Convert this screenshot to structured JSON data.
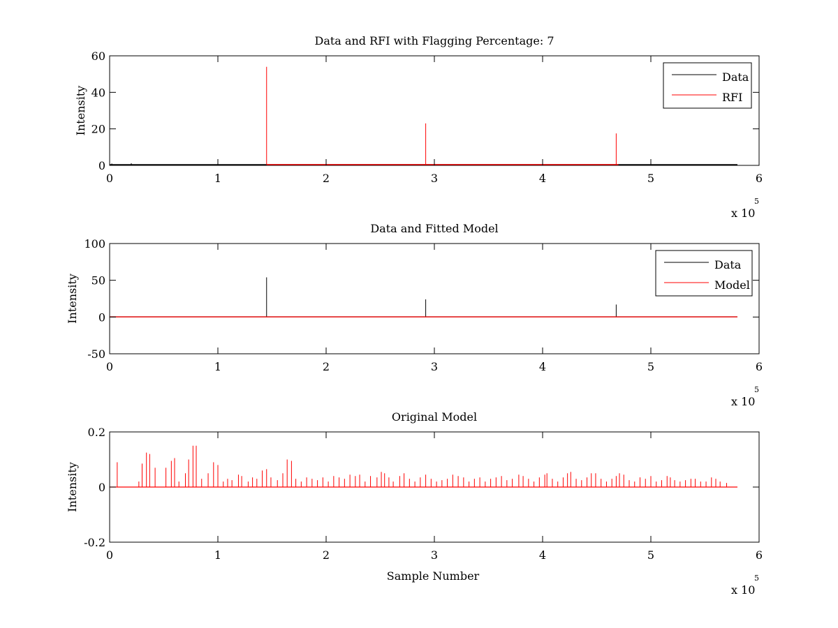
{
  "chart_data": [
    {
      "type": "line",
      "title": "Data and RFI with Flagging Percentage: 7",
      "xlabel": "",
      "ylabel": "Intensity",
      "xlim": [
        0,
        6
      ],
      "ylim": [
        0,
        60
      ],
      "x_multiplier_label": "x 10",
      "x_multiplier_exponent": "5",
      "x_ticks": [
        "0",
        "1",
        "2",
        "3",
        "4",
        "5",
        "6"
      ],
      "y_ticks": [
        "0",
        "20",
        "40",
        "60"
      ],
      "grid": false,
      "legend_position": "top-right",
      "series": [
        {
          "name": "Data",
          "color": "#000000",
          "baseline": 0.3,
          "x_range": [
            0,
            5.8
          ],
          "spikes": [
            [
              0.02,
              1.0
            ],
            [
              0.2,
              1.2
            ]
          ]
        },
        {
          "name": "RFI",
          "color": "#ff0000",
          "baseline": 0.4,
          "x_range": [
            1.45,
            4.7
          ],
          "spikes": [
            [
              1.45,
              54
            ],
            [
              2.92,
              23
            ],
            [
              4.68,
              17.5
            ]
          ]
        }
      ]
    },
    {
      "type": "line",
      "title": "Data and Fitted Model",
      "xlabel": "",
      "ylabel": "Intensity",
      "xlim": [
        0,
        6
      ],
      "ylim": [
        -50,
        100
      ],
      "x_multiplier_label": "x 10",
      "x_multiplier_exponent": "5",
      "x_ticks": [
        "0",
        "1",
        "2",
        "3",
        "4",
        "5",
        "6"
      ],
      "y_ticks": [
        "-50",
        "0",
        "50",
        "100"
      ],
      "grid": false,
      "legend_position": "top-right",
      "series": [
        {
          "name": "Data",
          "color": "#000000",
          "baseline": 0.3,
          "x_range": [
            0,
            5.8
          ],
          "spikes": [
            [
              1.45,
              54
            ],
            [
              2.92,
              24
            ],
            [
              4.68,
              17
            ]
          ]
        },
        {
          "name": "Model",
          "color": "#ff0000",
          "baseline": 0.2,
          "x_range": [
            0,
            5.8
          ],
          "spikes": []
        }
      ]
    },
    {
      "type": "line",
      "title": "Original Model",
      "xlabel": "Sample Number",
      "ylabel": "Intensity",
      "xlim": [
        0,
        6
      ],
      "ylim": [
        -0.2,
        0.2
      ],
      "x_multiplier_label": "x 10",
      "x_multiplier_exponent": "5",
      "x_ticks": [
        "0",
        "1",
        "2",
        "3",
        "4",
        "5",
        "6"
      ],
      "y_ticks": [
        "-0.2",
        "0",
        "0.2"
      ],
      "grid": false,
      "legend_position": "none",
      "series": [
        {
          "color": "#ff0000",
          "baseline": 0,
          "x_range": [
            0,
            5.8
          ],
          "spikes": [
            [
              0.07,
              0.09
            ],
            [
              0.27,
              0.02
            ],
            [
              0.3,
              0.085
            ],
            [
              0.34,
              0.125
            ],
            [
              0.37,
              0.12
            ],
            [
              0.42,
              0.07
            ],
            [
              0.52,
              0.07
            ],
            [
              0.57,
              0.095
            ],
            [
              0.6,
              0.105
            ],
            [
              0.64,
              0.02
            ],
            [
              0.7,
              0.05
            ],
            [
              0.73,
              0.1
            ],
            [
              0.77,
              0.15
            ],
            [
              0.8,
              0.15
            ],
            [
              0.85,
              0.03
            ],
            [
              0.91,
              0.05
            ],
            [
              0.96,
              0.09
            ],
            [
              1.0,
              0.08
            ],
            [
              1.05,
              0.02
            ],
            [
              1.09,
              0.03
            ],
            [
              1.13,
              0.025
            ],
            [
              1.19,
              0.045
            ],
            [
              1.22,
              0.04
            ],
            [
              1.28,
              0.02
            ],
            [
              1.32,
              0.035
            ],
            [
              1.36,
              0.03
            ],
            [
              1.41,
              0.06
            ],
            [
              1.45,
              0.065
            ],
            [
              1.49,
              0.035
            ],
            [
              1.55,
              0.025
            ],
            [
              1.6,
              0.05
            ],
            [
              1.64,
              0.1
            ],
            [
              1.68,
              0.095
            ],
            [
              1.72,
              0.03
            ],
            [
              1.77,
              0.02
            ],
            [
              1.82,
              0.035
            ],
            [
              1.87,
              0.03
            ],
            [
              1.92,
              0.025
            ],
            [
              1.97,
              0.035
            ],
            [
              2.02,
              0.02
            ],
            [
              2.07,
              0.04
            ],
            [
              2.12,
              0.035
            ],
            [
              2.17,
              0.03
            ],
            [
              2.22,
              0.045
            ],
            [
              2.27,
              0.04
            ],
            [
              2.31,
              0.045
            ],
            [
              2.36,
              0.02
            ],
            [
              2.41,
              0.04
            ],
            [
              2.47,
              0.035
            ],
            [
              2.51,
              0.055
            ],
            [
              2.54,
              0.05
            ],
            [
              2.58,
              0.035
            ],
            [
              2.62,
              0.02
            ],
            [
              2.68,
              0.04
            ],
            [
              2.72,
              0.05
            ],
            [
              2.77,
              0.03
            ],
            [
              2.82,
              0.02
            ],
            [
              2.87,
              0.035
            ],
            [
              2.92,
              0.045
            ],
            [
              2.97,
              0.03
            ],
            [
              3.02,
              0.02
            ],
            [
              3.07,
              0.025
            ],
            [
              3.12,
              0.03
            ],
            [
              3.17,
              0.045
            ],
            [
              3.22,
              0.04
            ],
            [
              3.27,
              0.035
            ],
            [
              3.32,
              0.02
            ],
            [
              3.37,
              0.03
            ],
            [
              3.42,
              0.035
            ],
            [
              3.47,
              0.02
            ],
            [
              3.52,
              0.03
            ],
            [
              3.57,
              0.035
            ],
            [
              3.62,
              0.04
            ],
            [
              3.67,
              0.025
            ],
            [
              3.72,
              0.03
            ],
            [
              3.78,
              0.045
            ],
            [
              3.82,
              0.04
            ],
            [
              3.87,
              0.03
            ],
            [
              3.92,
              0.02
            ],
            [
              3.97,
              0.035
            ],
            [
              4.02,
              0.045
            ],
            [
              4.04,
              0.05
            ],
            [
              4.09,
              0.03
            ],
            [
              4.14,
              0.02
            ],
            [
              4.19,
              0.035
            ],
            [
              4.23,
              0.05
            ],
            [
              4.26,
              0.055
            ],
            [
              4.31,
              0.03
            ],
            [
              4.36,
              0.025
            ],
            [
              4.41,
              0.035
            ],
            [
              4.45,
              0.05
            ],
            [
              4.49,
              0.05
            ],
            [
              4.54,
              0.03
            ],
            [
              4.59,
              0.02
            ],
            [
              4.64,
              0.03
            ],
            [
              4.68,
              0.04
            ],
            [
              4.71,
              0.05
            ],
            [
              4.75,
              0.045
            ],
            [
              4.8,
              0.025
            ],
            [
              4.85,
              0.02
            ],
            [
              4.9,
              0.035
            ],
            [
              4.95,
              0.03
            ],
            [
              5.0,
              0.04
            ],
            [
              5.05,
              0.02
            ],
            [
              5.1,
              0.025
            ],
            [
              5.15,
              0.04
            ],
            [
              5.18,
              0.035
            ],
            [
              5.22,
              0.025
            ],
            [
              5.27,
              0.02
            ],
            [
              5.32,
              0.025
            ],
            [
              5.37,
              0.03
            ],
            [
              5.41,
              0.03
            ],
            [
              5.46,
              0.02
            ],
            [
              5.51,
              0.02
            ],
            [
              5.56,
              0.035
            ],
            [
              5.6,
              0.03
            ],
            [
              5.64,
              0.02
            ],
            [
              5.7,
              0.015
            ]
          ]
        }
      ]
    }
  ]
}
